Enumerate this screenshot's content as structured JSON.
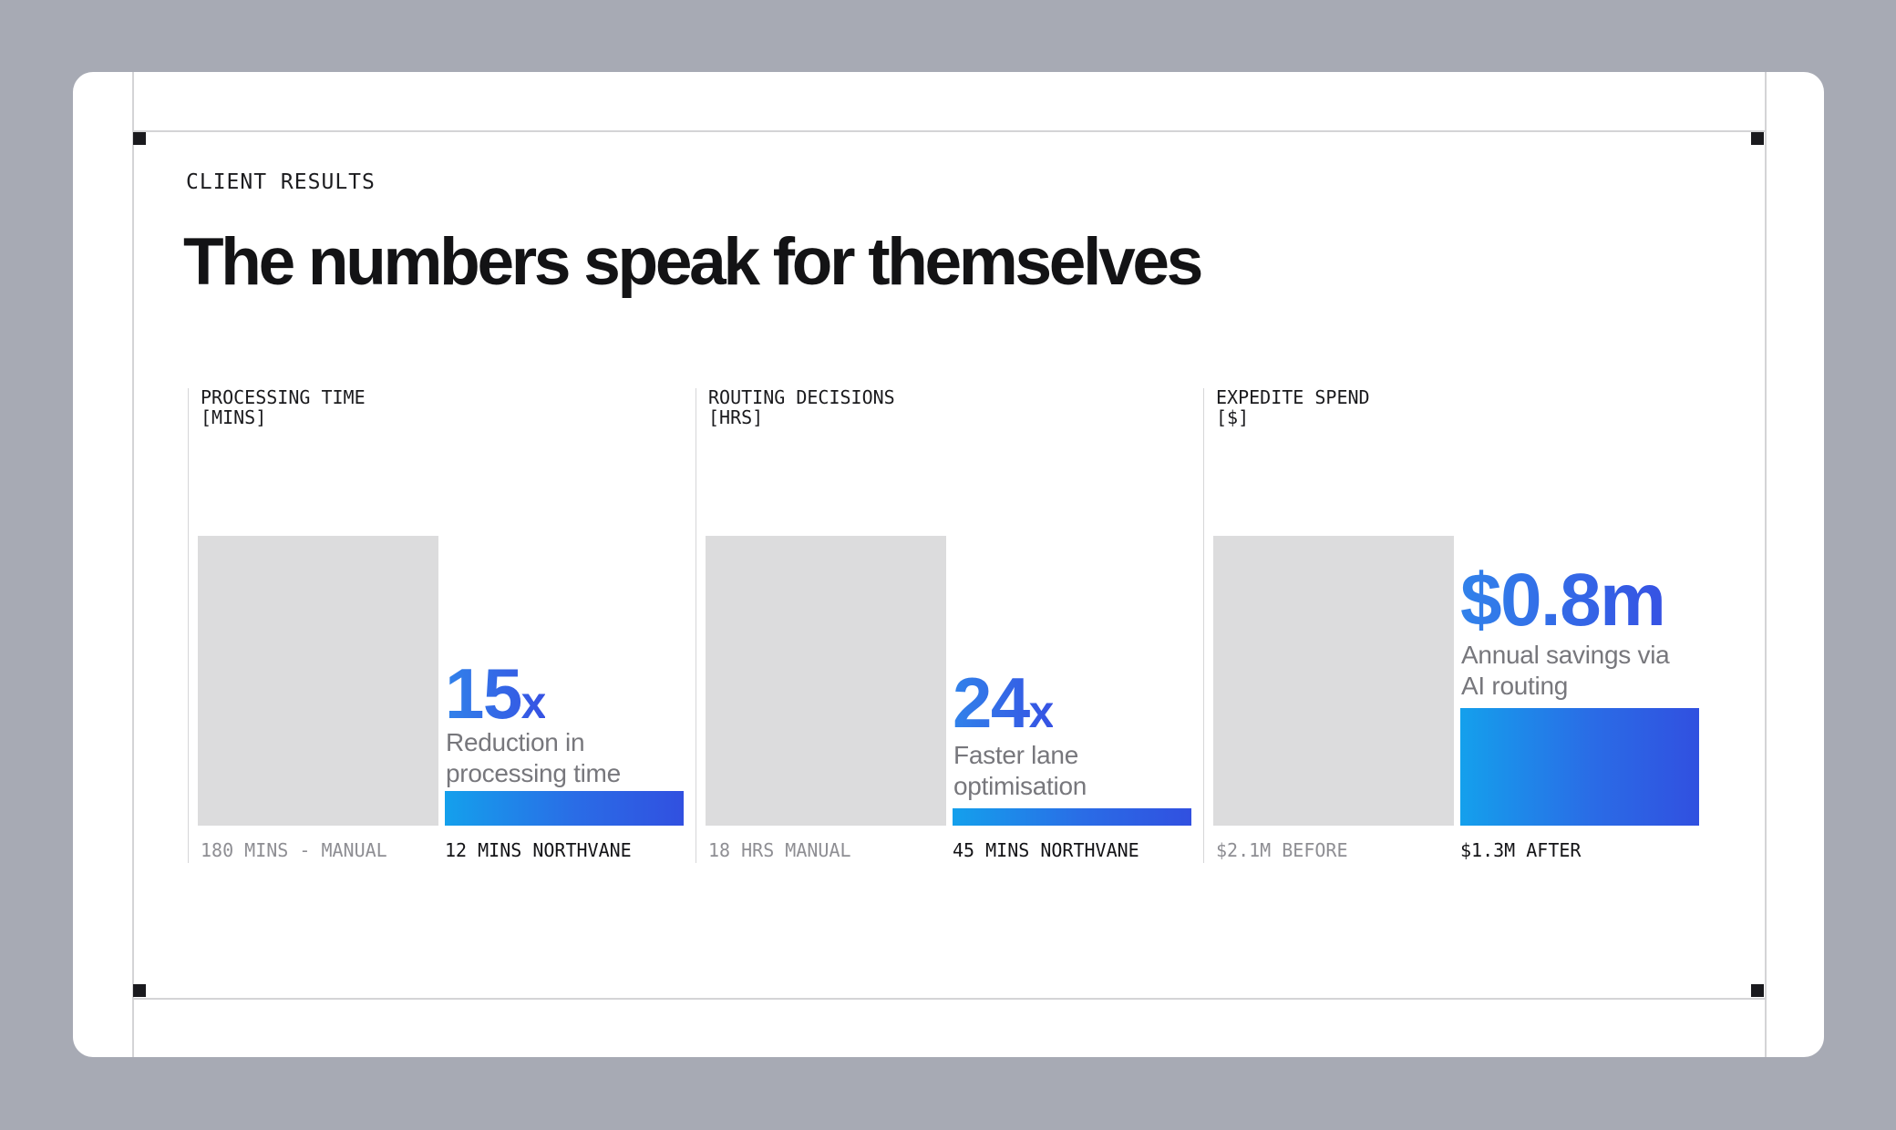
{
  "canvas": {
    "background_color": "#a7aab4",
    "card_color": "#ffffff",
    "guide_line_color": "#d4d4d6",
    "handle_color": "#1a1a1e"
  },
  "header": {
    "eyebrow": "CLIENT RESULTS",
    "title": "The numbers speak for themselves"
  },
  "colors": {
    "bar_gradient_start": "#14a0ec",
    "bar_gradient_end": "#3150e0",
    "number_gradient_start": "#3182ea",
    "number_gradient_end": "#3652e3",
    "bar_gray": "#dcdcdd",
    "desc_gray": "#77777c",
    "label_gray": "#8e8e93",
    "label_black": "#141417"
  },
  "panels": [
    {
      "label_line1": "PROCESSING TIME",
      "label_line2": "[MINS]",
      "stat_value": "15",
      "stat_suffix": "x",
      "desc_line1": "Reduction in",
      "desc_line2": "processing time",
      "before_label": "180 MINS - MANUAL",
      "after_label": "12 MINS NORTHVANE",
      "bars": {
        "gray_h": 318,
        "blue_h": 38
      }
    },
    {
      "label_line1": "ROUTING DECISIONS",
      "label_line2": "[HRS]",
      "stat_value": "24",
      "stat_suffix": "x",
      "desc_line1": "Faster lane",
      "desc_line2": "optimisation",
      "before_label": "18 HRS MANUAL",
      "after_label": "45 MINS NORTHVANE",
      "bars": {
        "gray_h": 318,
        "blue_h": 19
      }
    },
    {
      "label_line1": "EXPEDITE SPEND",
      "label_line2": "[$]",
      "stat_value": "$0.8m",
      "stat_suffix": "",
      "desc_line1": "Annual savings via",
      "desc_line2": "AI routing",
      "before_label": "$2.1M BEFORE",
      "after_label": "$1.3M AFTER",
      "bars": {
        "gray_h": 318,
        "blue_h": 129
      }
    }
  ],
  "chart_data": [
    {
      "type": "bar",
      "title": "PROCESSING TIME [MINS]",
      "categories": [
        "MANUAL",
        "NORTHVANE"
      ],
      "values": [
        180,
        12
      ],
      "value_unit": "minutes",
      "bar_labels": [
        "180 MINS - MANUAL",
        "12 MINS NORTHVANE"
      ],
      "annotation": "15x Reduction in processing time",
      "legend_position": "none",
      "grid": false
    },
    {
      "type": "bar",
      "title": "ROUTING DECISIONS [HRS]",
      "categories": [
        "MANUAL",
        "NORTHVANE"
      ],
      "values": [
        18,
        0.75
      ],
      "value_unit": "hours",
      "values_text": [
        "18 HRS",
        "45 MINS"
      ],
      "bar_labels": [
        "18 HRS MANUAL",
        "45 MINS NORTHVANE"
      ],
      "annotation": "24x Faster lane optimisation",
      "legend_position": "none",
      "grid": false
    },
    {
      "type": "bar",
      "title": "EXPEDITE SPEND [$]",
      "categories": [
        "BEFORE",
        "AFTER"
      ],
      "values": [
        2.1,
        1.3
      ],
      "value_unit": "million USD",
      "bar_labels": [
        "$2.1M BEFORE",
        "$1.3M AFTER"
      ],
      "annotation": "$0.8m Annual savings via AI routing",
      "legend_position": "none",
      "grid": false
    }
  ]
}
